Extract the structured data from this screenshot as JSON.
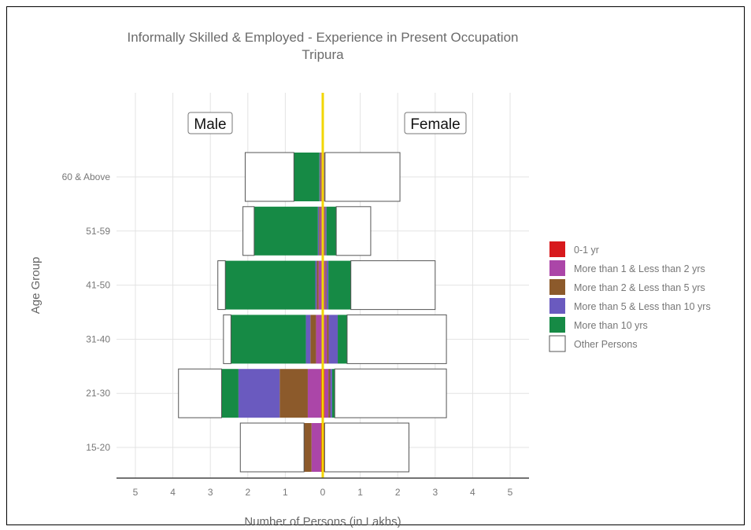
{
  "chart_data": {
    "type": "bar",
    "orientation": "horizontal-population-pyramid",
    "title": "Informally Skilled & Employed - Experience in Present Occupation",
    "subtitle": "Tripura",
    "xlabel": "Number of Persons (in Lakhs)",
    "ylabel": "Age Group",
    "xlim": [
      -5,
      5
    ],
    "x_ticks": [
      "5",
      "4",
      "3",
      "2",
      "1",
      "0",
      "1",
      "2",
      "3",
      "4",
      "5"
    ],
    "side_labels": {
      "left": "Male",
      "right": "Female"
    },
    "categories": [
      "15-20",
      "21-30",
      "31-40",
      "41-50",
      "51-59",
      "60 & Above"
    ],
    "grid": true,
    "legend_position": "right",
    "zero_line_color": "#f2d600",
    "series": [
      {
        "name": "0-1 yr",
        "color": "#d7191c",
        "male": [
          0.05,
          0.05,
          0.03,
          0.03,
          0.02,
          0.02
        ],
        "female": [
          0.05,
          0.05,
          0.03,
          0.03,
          0.02,
          0.02
        ]
      },
      {
        "name": "More than 1 & Less than 2 yrs",
        "color": "#ab46a8",
        "male": [
          0.25,
          0.35,
          0.15,
          0.08,
          0.05,
          0.03
        ],
        "female": [
          0.0,
          0.1,
          0.08,
          0.04,
          0.03,
          0.02
        ]
      },
      {
        "name": "More than 2 & Less than 5 yrs",
        "color": "#8c5a2b",
        "male": [
          0.2,
          0.75,
          0.15,
          0.05,
          0.03,
          0.02
        ],
        "female": [
          0.0,
          0.05,
          0.05,
          0.03,
          0.02,
          0.01
        ]
      },
      {
        "name": "More than 5 & Less than 10 yrs",
        "color": "#6a5abf",
        "male": [
          0.0,
          1.1,
          0.12,
          0.04,
          0.03,
          0.02
        ],
        "female": [
          0.0,
          0.05,
          0.24,
          0.05,
          0.03,
          0.01
        ]
      },
      {
        "name": "More than 10 yrs",
        "color": "#168a45",
        "male": [
          0.0,
          0.45,
          2.0,
          2.4,
          1.7,
          0.68
        ],
        "female": [
          0.0,
          0.07,
          0.25,
          0.6,
          0.26,
          0.0
        ]
      },
      {
        "name": "Other Persons",
        "color": "#ffffff",
        "male": [
          1.7,
          1.15,
          0.2,
          0.2,
          0.3,
          1.3
        ],
        "female": [
          2.25,
          2.98,
          2.65,
          2.25,
          0.92,
          2.0
        ]
      }
    ]
  }
}
